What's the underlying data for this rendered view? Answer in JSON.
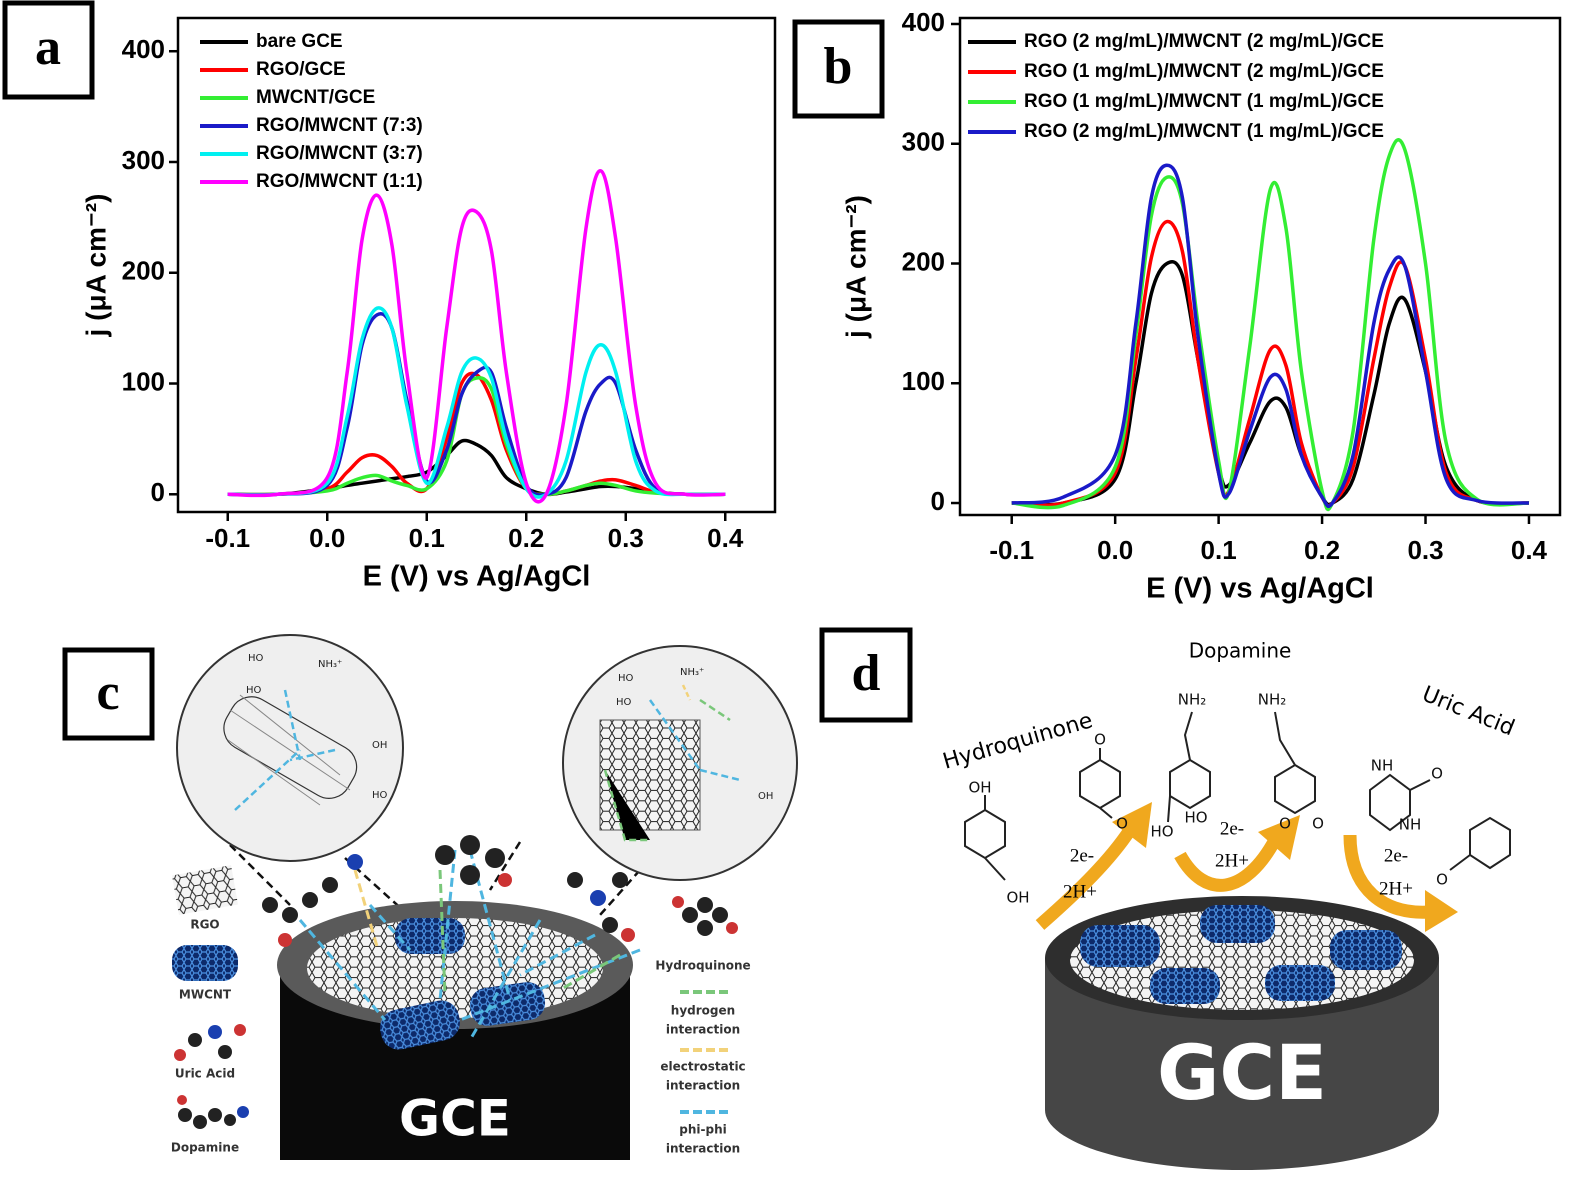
{
  "chart_data": [
    {
      "type": "line",
      "label": "a",
      "xlabel": "E (V) vs Ag/AgCl",
      "ylabel": "j (μA cm⁻²)",
      "x": [
        -0.1,
        -0.05,
        0,
        0.02,
        0.035,
        0.05,
        0.065,
        0.08,
        0.1,
        0.12,
        0.135,
        0.15,
        0.165,
        0.18,
        0.2,
        0.22,
        0.24,
        0.26,
        0.275,
        0.29,
        0.31,
        0.33,
        0.36,
        0.4
      ],
      "series": [
        {
          "name": "bare GCE",
          "color": "#000000",
          "values": [
            0,
            0,
            5,
            8,
            10,
            12,
            14,
            16,
            20,
            35,
            48,
            45,
            35,
            15,
            5,
            0,
            2,
            5,
            7,
            7,
            5,
            2,
            0,
            0
          ]
        },
        {
          "name": "RGO/GCE",
          "color": "#ff0000",
          "values": [
            0,
            0,
            5,
            20,
            33,
            35,
            25,
            10,
            5,
            50,
            100,
            108,
            85,
            40,
            5,
            0,
            3,
            8,
            12,
            13,
            8,
            2,
            0,
            0
          ]
        },
        {
          "name": "MWCNT/GCE",
          "color": "#33ee33",
          "values": [
            0,
            0,
            3,
            10,
            15,
            17,
            12,
            8,
            5,
            30,
            90,
            105,
            95,
            45,
            5,
            0,
            3,
            8,
            10,
            8,
            3,
            1,
            0,
            0
          ]
        },
        {
          "name": "RGO/MWCNT (7:3)",
          "color": "#1a1ac8",
          "values": [
            0,
            0,
            8,
            60,
            135,
            162,
            150,
            85,
            12,
            40,
            90,
            110,
            110,
            60,
            8,
            0,
            15,
            75,
            100,
            100,
            40,
            5,
            0,
            0
          ]
        },
        {
          "name": "RGO/MWCNT (3:7)",
          "color": "#00f0f0",
          "values": [
            0,
            0,
            10,
            70,
            140,
            168,
            150,
            80,
            10,
            60,
            110,
            123,
            105,
            50,
            5,
            0,
            30,
            110,
            135,
            110,
            30,
            3,
            0,
            0
          ]
        },
        {
          "name": "RGO/MWCNT (1:1)",
          "color": "#ff00ff",
          "values": [
            0,
            0,
            15,
            110,
            230,
            270,
            225,
            110,
            15,
            150,
            240,
            255,
            220,
            110,
            10,
            0,
            80,
            240,
            292,
            230,
            80,
            10,
            0,
            0
          ]
        }
      ],
      "xlim": [
        -0.15,
        0.45
      ],
      "ylim": [
        -16,
        430
      ],
      "xticks": [
        -0.1,
        {
          "value": 0,
          "label": "0.0"
        },
        0.1,
        0.2,
        0.3,
        0.4
      ],
      "yticks": [
        0,
        100,
        200,
        300,
        400
      ]
    },
    {
      "type": "line",
      "label": "b",
      "xlabel": "E (V) vs Ag/AgCl",
      "ylabel": "j (μA cm⁻²)",
      "x": [
        -0.1,
        -0.05,
        0,
        0.02,
        0.035,
        0.05,
        0.065,
        0.08,
        0.1,
        0.11,
        0.13,
        0.15,
        0.165,
        0.18,
        0.2,
        0.21,
        0.23,
        0.25,
        0.265,
        0.28,
        0.3,
        0.32,
        0.35,
        0.4
      ],
      "series": [
        {
          "name": "RGO (2 mg/mL)/MWCNT (2 mg/mL)/GCE",
          "color": "#000000",
          "values": [
            0,
            0,
            20,
            100,
            175,
            200,
            190,
            120,
            30,
            15,
            50,
            85,
            80,
            40,
            5,
            0,
            20,
            90,
            150,
            170,
            110,
            30,
            2,
            0
          ]
        },
        {
          "name": "RGO (1 mg/mL)/MWCNT (2 mg/mL)/GCE",
          "color": "#ff0000",
          "values": [
            0,
            0,
            25,
            120,
            205,
            235,
            210,
            120,
            25,
            10,
            70,
            128,
            115,
            50,
            5,
            0,
            30,
            120,
            180,
            198,
            120,
            25,
            2,
            0
          ]
        },
        {
          "name": "RGO (1 mg/mL)/MWCNT (1 mg/mL)/GCE",
          "color": "#33ee33",
          "values": [
            0,
            -2,
            30,
            140,
            240,
            272,
            250,
            150,
            35,
            10,
            130,
            262,
            230,
            110,
            10,
            0,
            60,
            220,
            290,
            295,
            200,
            50,
            3,
            0
          ]
        },
        {
          "name": "RGO (2 mg/mL)/MWCNT (1 mg/mL)/GCE",
          "color": "#1a1ac8",
          "values": [
            0,
            5,
            40,
            150,
            255,
            282,
            255,
            140,
            25,
            8,
            60,
            105,
            95,
            40,
            5,
            0,
            40,
            150,
            195,
            198,
            110,
            20,
            2,
            0
          ]
        }
      ],
      "xlim": [
        -0.15,
        0.43
      ],
      "ylim": [
        -10,
        405
      ],
      "xticks": [
        -0.1,
        {
          "value": 0,
          "label": "0.0"
        },
        0.1,
        0.2,
        0.3,
        0.4
      ],
      "yticks": [
        0,
        100,
        200,
        300,
        400
      ]
    }
  ],
  "panel_c": {
    "label": "c",
    "legend": [
      "RGO",
      "MWCNT",
      "Uric Acid",
      "Dopamine"
    ],
    "key": [
      [
        "Hydroquinone"
      ],
      [
        "hydrogen",
        "interaction"
      ],
      [
        "electrostatic",
        "interaction"
      ],
      [
        "phi-phi",
        "interaction"
      ]
    ],
    "atoms": [
      "HO",
      "HO",
      "NH₃⁺",
      "OH",
      "HO",
      "HO",
      "HO",
      "NH₃⁺",
      "OH"
    ],
    "electrode": "GCE"
  },
  "panel_d": {
    "label": "d",
    "molecules": [
      "Hydroquinone",
      "Dopamine",
      "Uric Acid"
    ],
    "steps": [
      [
        "2e-",
        "2H+"
      ],
      [
        "2e-",
        "2H+"
      ],
      [
        "2e-",
        "2H+"
      ]
    ],
    "atoms": [
      "OH",
      "OH",
      "O",
      "O",
      "NH₂",
      "HO",
      "HO",
      "NH₂",
      "O",
      "O",
      "NH",
      "NH",
      "O",
      "O"
    ],
    "electrode": "GCE"
  }
}
